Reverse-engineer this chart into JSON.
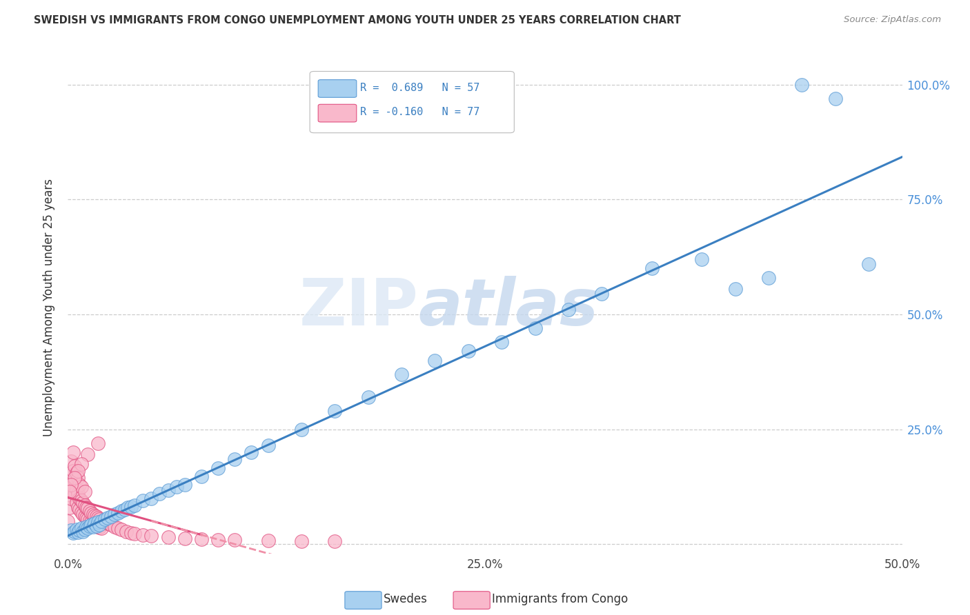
{
  "title": "SWEDISH VS IMMIGRANTS FROM CONGO UNEMPLOYMENT AMONG YOUTH UNDER 25 YEARS CORRELATION CHART",
  "source": "Source: ZipAtlas.com",
  "ylabel": "Unemployment Among Youth under 25 years",
  "xlim": [
    0.0,
    0.5
  ],
  "ylim": [
    -0.02,
    1.05
  ],
  "xtick_vals": [
    0.0,
    0.05,
    0.1,
    0.15,
    0.2,
    0.25,
    0.3,
    0.35,
    0.4,
    0.45,
    0.5
  ],
  "xticklabels": [
    "0.0%",
    "",
    "",
    "",
    "",
    "25.0%",
    "",
    "",
    "",
    "",
    "50.0%"
  ],
  "ytick_vals": [
    0.0,
    0.25,
    0.5,
    0.75,
    1.0
  ],
  "yticklabels_right": [
    "",
    "25.0%",
    "50.0%",
    "75.0%",
    "100.0%"
  ],
  "watermark_zip": "ZIP",
  "watermark_atlas": "atlas",
  "blue_fill": "#a8d0f0",
  "blue_edge": "#5b9bd5",
  "pink_fill": "#f9b8cb",
  "pink_edge": "#e05080",
  "line_blue_color": "#3a7fc1",
  "line_pink_solid": "#e05080",
  "line_pink_dash": "#f090a8",
  "bg_color": "#ffffff",
  "grid_color": "#cccccc",
  "blue_x": [
    0.002,
    0.003,
    0.004,
    0.005,
    0.006,
    0.007,
    0.008,
    0.009,
    0.01,
    0.011,
    0.012,
    0.013,
    0.014,
    0.015,
    0.016,
    0.017,
    0.018,
    0.019,
    0.02,
    0.022,
    0.024,
    0.026,
    0.028,
    0.03,
    0.032,
    0.034,
    0.036,
    0.038,
    0.04,
    0.045,
    0.05,
    0.055,
    0.06,
    0.065,
    0.07,
    0.08,
    0.09,
    0.1,
    0.11,
    0.12,
    0.14,
    0.16,
    0.18,
    0.2,
    0.22,
    0.24,
    0.26,
    0.28,
    0.3,
    0.32,
    0.35,
    0.38,
    0.4,
    0.42,
    0.44,
    0.46,
    0.48
  ],
  "blue_y": [
    0.03,
    0.025,
    0.028,
    0.032,
    0.026,
    0.03,
    0.035,
    0.028,
    0.032,
    0.038,
    0.035,
    0.04,
    0.042,
    0.038,
    0.045,
    0.04,
    0.048,
    0.042,
    0.05,
    0.055,
    0.058,
    0.06,
    0.065,
    0.068,
    0.072,
    0.075,
    0.08,
    0.082,
    0.085,
    0.095,
    0.1,
    0.11,
    0.118,
    0.125,
    0.13,
    0.148,
    0.165,
    0.185,
    0.2,
    0.215,
    0.25,
    0.29,
    0.32,
    0.37,
    0.4,
    0.42,
    0.44,
    0.47,
    0.51,
    0.545,
    0.6,
    0.62,
    0.555,
    0.58,
    1.0,
    0.97,
    0.61
  ],
  "pink_x": [
    0.0,
    0.001,
    0.001,
    0.002,
    0.002,
    0.002,
    0.003,
    0.003,
    0.003,
    0.004,
    0.004,
    0.004,
    0.005,
    0.005,
    0.005,
    0.006,
    0.006,
    0.006,
    0.007,
    0.007,
    0.007,
    0.008,
    0.008,
    0.008,
    0.009,
    0.009,
    0.01,
    0.01,
    0.01,
    0.011,
    0.011,
    0.012,
    0.012,
    0.013,
    0.013,
    0.014,
    0.014,
    0.015,
    0.015,
    0.016,
    0.016,
    0.017,
    0.017,
    0.018,
    0.018,
    0.019,
    0.019,
    0.02,
    0.021,
    0.022,
    0.023,
    0.024,
    0.025,
    0.026,
    0.028,
    0.03,
    0.032,
    0.035,
    0.038,
    0.04,
    0.045,
    0.05,
    0.06,
    0.07,
    0.08,
    0.09,
    0.1,
    0.12,
    0.14,
    0.16,
    0.018,
    0.012,
    0.008,
    0.006,
    0.004,
    0.002,
    0.001
  ],
  "pink_y": [
    0.05,
    0.08,
    0.12,
    0.1,
    0.15,
    0.18,
    0.13,
    0.16,
    0.2,
    0.11,
    0.14,
    0.17,
    0.09,
    0.12,
    0.155,
    0.08,
    0.11,
    0.145,
    0.075,
    0.1,
    0.13,
    0.07,
    0.095,
    0.125,
    0.065,
    0.09,
    0.06,
    0.085,
    0.115,
    0.058,
    0.08,
    0.055,
    0.078,
    0.052,
    0.072,
    0.048,
    0.068,
    0.045,
    0.065,
    0.042,
    0.062,
    0.04,
    0.06,
    0.038,
    0.058,
    0.036,
    0.055,
    0.035,
    0.052,
    0.05,
    0.048,
    0.046,
    0.044,
    0.042,
    0.038,
    0.035,
    0.032,
    0.028,
    0.025,
    0.023,
    0.02,
    0.018,
    0.015,
    0.013,
    0.011,
    0.01,
    0.009,
    0.008,
    0.007,
    0.006,
    0.22,
    0.195,
    0.175,
    0.16,
    0.145,
    0.13,
    0.115
  ]
}
